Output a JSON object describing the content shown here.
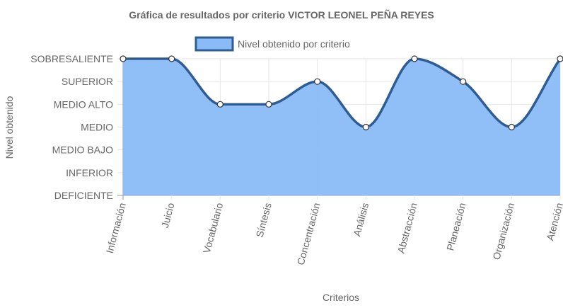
{
  "chart_data": {
    "type": "area",
    "title": "Gráfica de resultados por criterio VICTOR LEONEL PEÑA REYES",
    "xlabel": "Criterios",
    "ylabel": "Nivel obtenido",
    "categories": [
      "Información",
      "Juicio",
      "Vocabulario",
      "Síntesis",
      "Concentración",
      "Análisis",
      "Abstracción",
      "Planeación",
      "Organización",
      "Atención"
    ],
    "y_levels": [
      "DEFICIENTE",
      "INFERIOR",
      "MEDIO BAJO",
      "MEDIO",
      "MEDIO ALTO",
      "SUPERIOR",
      "SOBRESALIENTE"
    ],
    "series": [
      {
        "name": "Nivel obtenido por criterio",
        "values": [
          6,
          6,
          4,
          4,
          5,
          3,
          6,
          5,
          3,
          6
        ],
        "value_labels": [
          "SOBRESALIENTE",
          "SOBRESALIENTE",
          "MEDIO ALTO",
          "MEDIO ALTO",
          "SUPERIOR",
          "MEDIO",
          "SOBRESALIENTE",
          "SUPERIOR",
          "MEDIO",
          "SOBRESALIENTE"
        ]
      }
    ],
    "ylim": [
      0,
      6
    ],
    "grid": true,
    "legend": "top",
    "colors": {
      "fill": "#8ABBF7",
      "line": "#2E5C93",
      "point": "#ffffff",
      "grid": "#e5e5e5",
      "axis": "#999999"
    }
  }
}
